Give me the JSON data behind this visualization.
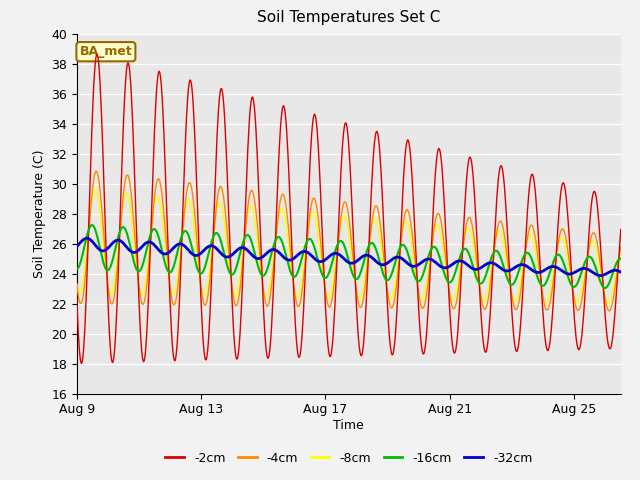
{
  "title": "Soil Temperatures Set C",
  "xlabel": "Time",
  "ylabel": "Soil Temperature (C)",
  "ylim": [
    16,
    40
  ],
  "yticks": [
    16,
    18,
    20,
    22,
    24,
    26,
    28,
    30,
    32,
    34,
    36,
    38,
    40
  ],
  "bg_color": "#e8e8e8",
  "fig_bg_color": "#f2f2f2",
  "annotation_text": "BA_met",
  "annotation_bg": "#ffffcc",
  "annotation_border": "#996600",
  "line_colors": {
    "-2cm": "#dd0000",
    "-4cm": "#ff8800",
    "-8cm": "#ffff00",
    "-16cm": "#00bb00",
    "-32cm": "#0000cc"
  },
  "x_tick_labels": [
    "Aug 9",
    "Aug 13",
    "Aug 17",
    "Aug 21",
    "Aug 25"
  ],
  "x_tick_positions": [
    0,
    4,
    8,
    12,
    16
  ],
  "total_days": 17.5
}
